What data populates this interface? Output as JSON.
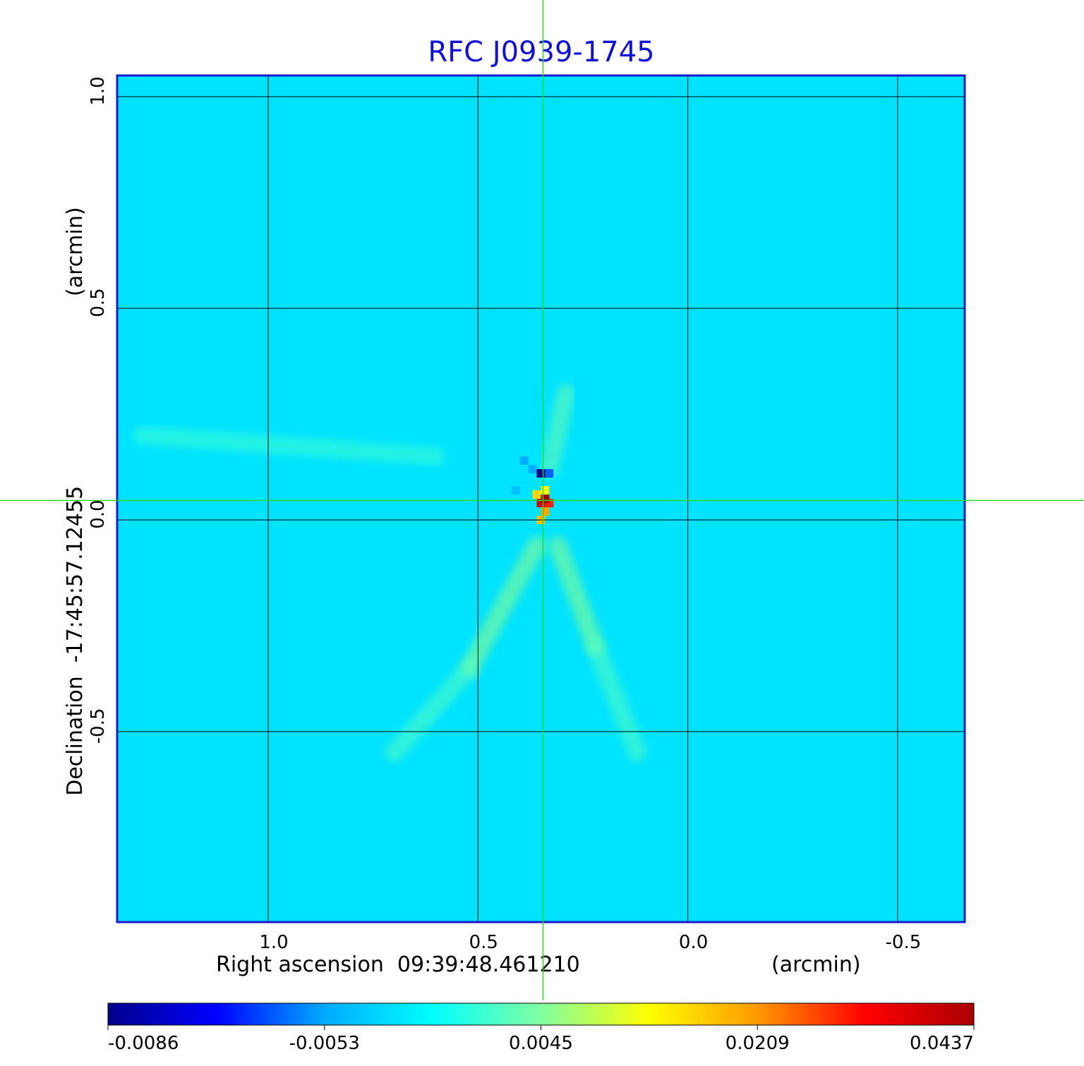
{
  "chart_data": {
    "type": "heatmap",
    "title": "RFC J0939-1745",
    "xlabel": "Right ascension  09:39:48.461210",
    "xunit": "(arcmin)",
    "ylabel": "Declination  -17:45:57.12455",
    "yunit": "(arcmin)",
    "xlim": [
      1.36,
      -0.66
    ],
    "ylim": [
      -0.95,
      1.05
    ],
    "x_ticks": [
      {
        "value": 1.0,
        "label": "1.0"
      },
      {
        "value": 0.5,
        "label": "0.5"
      },
      {
        "value": 0.0,
        "label": "0.0"
      },
      {
        "value": -0.5,
        "label": "-0.5"
      }
    ],
    "y_ticks": [
      {
        "value": 1.0,
        "label": "1.0"
      },
      {
        "value": 0.5,
        "label": "0.5"
      },
      {
        "value": 0.0,
        "label": "0.0"
      },
      {
        "value": -0.5,
        "label": "-0.5"
      }
    ],
    "grid": true,
    "crosshair": {
      "x": 0.345,
      "y": 0.046
    },
    "colorbar": {
      "ticks": [
        {
          "value": -0.0086,
          "label": "-0.0086"
        },
        {
          "value": -0.0053,
          "label": "-0.0053"
        },
        {
          "value": 0.0045,
          "label": "0.0045"
        },
        {
          "value": 0.0209,
          "label": "0.0209"
        },
        {
          "value": 0.0437,
          "label": "0.0437"
        }
      ],
      "colormap": [
        "#00008b",
        "#0000ff",
        "#00aaff",
        "#00ffff",
        "#80ffa0",
        "#ffff00",
        "#ff9900",
        "#ff0000",
        "#aa0000"
      ]
    },
    "background_value": -0.002,
    "features": [
      {
        "x": 0.34,
        "y": 0.05,
        "value": 0.0437
      },
      {
        "x": 0.35,
        "y": 0.04,
        "value": 0.038
      },
      {
        "x": 0.33,
        "y": 0.04,
        "value": 0.03
      },
      {
        "x": 0.34,
        "y": 0.02,
        "value": 0.02
      },
      {
        "x": 0.35,
        "y": 0.0,
        "value": 0.018
      },
      {
        "x": 0.36,
        "y": 0.06,
        "value": 0.016
      },
      {
        "x": 0.34,
        "y": 0.07,
        "value": 0.012
      },
      {
        "x": 0.35,
        "y": 0.11,
        "value": -0.0086
      },
      {
        "x": 0.33,
        "y": 0.11,
        "value": -0.006
      },
      {
        "x": 0.37,
        "y": 0.12,
        "value": -0.005
      },
      {
        "x": 0.39,
        "y": 0.14,
        "value": -0.005
      },
      {
        "x": 0.41,
        "y": 0.07,
        "value": -0.004
      }
    ],
    "streaks": [
      {
        "x1": 0.36,
        "y1": -0.06,
        "x2": 0.52,
        "y2": -0.35,
        "value": 0.006
      },
      {
        "x1": 0.31,
        "y1": -0.06,
        "x2": 0.22,
        "y2": -0.3,
        "value": 0.006
      },
      {
        "x1": 0.33,
        "y1": 0.12,
        "x2": 0.29,
        "y2": 0.3,
        "value": 0.004
      },
      {
        "x1": 0.52,
        "y1": -0.35,
        "x2": 0.7,
        "y2": -0.55,
        "value": 0.003
      },
      {
        "x1": 0.22,
        "y1": -0.3,
        "x2": 0.12,
        "y2": -0.55,
        "value": 0.003
      },
      {
        "x1": 0.6,
        "y1": 0.15,
        "x2": 1.3,
        "y2": 0.2,
        "value": 0.002
      }
    ]
  }
}
